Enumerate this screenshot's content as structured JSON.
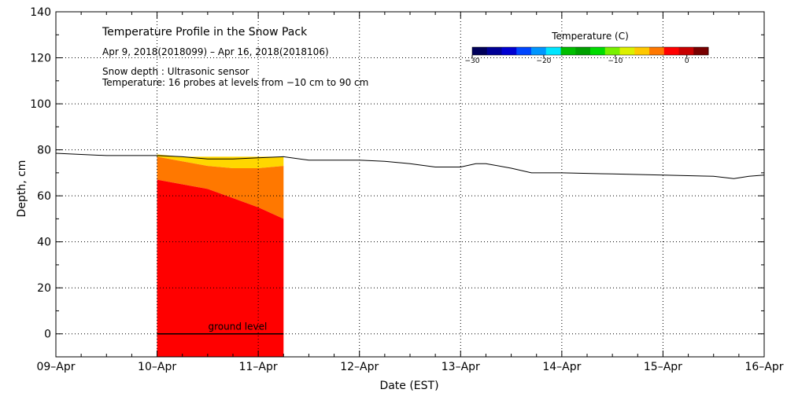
{
  "chart_data": {
    "type": "heatmap",
    "title": "Temperature Profile in the Snow Pack",
    "subtitle": "Apr  9, 2018(2018099) – Apr 16, 2018(2018106)",
    "notes": [
      "Snow depth : Ultrasonic sensor",
      "Temperature: 16 probes at levels from −10 cm to 90 cm"
    ],
    "xlabel": "Date (EST)",
    "ylabel": "Depth, cm",
    "x_range_days": [
      0,
      7
    ],
    "x_ticks": [
      {
        "day": 0,
        "label": "09–Apr"
      },
      {
        "day": 1,
        "label": "10–Apr"
      },
      {
        "day": 2,
        "label": "11–Apr"
      },
      {
        "day": 3,
        "label": "12–Apr"
      },
      {
        "day": 4,
        "label": "13–Apr"
      },
      {
        "day": 5,
        "label": "14–Apr"
      },
      {
        "day": 6,
        "label": "15–Apr"
      },
      {
        "day": 7,
        "label": "16–Apr"
      }
    ],
    "ylim": [
      -10,
      140
    ],
    "y_ticks": [
      0,
      20,
      40,
      60,
      80,
      100,
      120,
      140
    ],
    "grid": true,
    "ground_level_label": "ground level",
    "colorbar": {
      "title": "Temperature (C)",
      "range": [
        -30,
        3
      ],
      "tick_values": [
        -30,
        -20,
        -10,
        0
      ],
      "tick_labels": [
        "−30",
        "−20",
        "−10",
        "0"
      ],
      "colors": [
        "#00005a",
        "#000096",
        "#0000d2",
        "#0046ff",
        "#0096ff",
        "#00e6ff",
        "#00be00",
        "#00a000",
        "#00dc00",
        "#78f000",
        "#dcf000",
        "#ffc800",
        "#ff7800",
        "#ff0000",
        "#c80000",
        "#780000"
      ]
    },
    "temperature_bands": [
      {
        "name": "upper layer",
        "color": "#ffd700",
        "bottom_depth": [
          77,
          75,
          73,
          72,
          72,
          73
        ],
        "top_depth": [
          78,
          77,
          77,
          77,
          77,
          77
        ]
      },
      {
        "name": "middle layer",
        "color": "#ff7800",
        "bottom_depth": [
          67,
          65,
          63,
          59,
          55,
          50
        ],
        "top_depth": [
          77,
          75,
          73,
          72,
          72,
          73
        ]
      },
      {
        "name": "lower layer",
        "color": "#ff0000",
        "bottom_depth": [
          0,
          0,
          0,
          0,
          0,
          0
        ],
        "top_depth": [
          67,
          65,
          63,
          59,
          55,
          50
        ]
      }
    ],
    "band_x_days": [
      1.0,
      1.25,
      1.5,
      1.75,
      2.0,
      2.25
    ],
    "band_fill_bottom": -10,
    "snow_depth_series": {
      "name": "Snow depth",
      "x_days": [
        0,
        0.25,
        0.5,
        0.75,
        1.0,
        1.25,
        1.5,
        1.75,
        2.0,
        2.25,
        2.5,
        3.0,
        3.25,
        3.5,
        3.75,
        4.0,
        4.15,
        4.25,
        4.5,
        4.7,
        5.0,
        5.5,
        6.0,
        6.5,
        6.7,
        6.85,
        7.0
      ],
      "depth_cm": [
        78.5,
        78,
        77.5,
        77.5,
        77.5,
        77,
        76,
        76,
        76.5,
        77,
        75.5,
        75.5,
        75,
        74,
        72.5,
        72.5,
        74,
        74,
        72,
        70,
        70,
        69.5,
        69,
        68.5,
        67.5,
        68.5,
        69
      ]
    }
  }
}
